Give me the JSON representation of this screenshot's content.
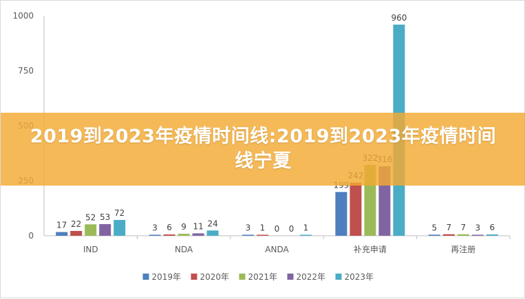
{
  "banner": {
    "title": "2019到2023年疫情时间线:2019到2023年疫情时间线宁夏"
  },
  "chart_data": {
    "type": "bar",
    "categories": [
      "IND",
      "NDA",
      "ANDA",
      "补充申请",
      "再注册"
    ],
    "series": [
      {
        "name": "2019年",
        "color": "#4e7fbf",
        "values": [
          17,
          3,
          3,
          199,
          5
        ]
      },
      {
        "name": "2020年",
        "color": "#c0504d",
        "values": [
          22,
          6,
          1,
          242,
          7
        ]
      },
      {
        "name": "2021年",
        "color": "#9bbb59",
        "values": [
          52,
          9,
          0,
          322,
          7
        ]
      },
      {
        "name": "2022年",
        "color": "#8064a2",
        "values": [
          53,
          11,
          0,
          316,
          3
        ]
      },
      {
        "name": "2023年",
        "color": "#4bacc6",
        "values": [
          72,
          24,
          1,
          960,
          6
        ]
      }
    ],
    "y_ticks": [
      0,
      250,
      500,
      750,
      1000
    ],
    "ylim": [
      0,
      1000
    ],
    "legend_position": "bottom",
    "grid": false
  }
}
